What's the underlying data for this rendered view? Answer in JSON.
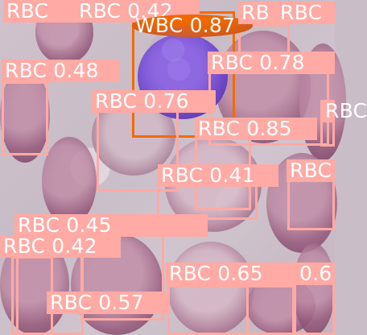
{
  "colors": {
    "rbc_box": "#ffaaa4",
    "wbc_box": "#f46a00",
    "label_text": "#ffffff"
  },
  "detections": [
    {
      "label": "RBC 0.42",
      "class": "rbc"
    },
    {
      "label": "RBC 0.48",
      "class": "rbc"
    },
    {
      "label": "RBC 0.76",
      "class": "rbc"
    },
    {
      "label": "WBC 0.87",
      "class": "wbc"
    },
    {
      "label": "RBC 0.78",
      "class": "rbc"
    },
    {
      "label": "RBC 0.85",
      "class": "rbc"
    },
    {
      "label": "RBC 0.41",
      "class": "rbc"
    },
    {
      "label": "RBC 0.45",
      "class": "rbc"
    },
    {
      "label": "RBC 0.42",
      "class": "rbc"
    },
    {
      "label": "RBC 0.65",
      "class": "rbc"
    },
    {
      "label": "RBC 0.57",
      "class": "rbc"
    },
    {
      "label": "RBC",
      "class": "rbc"
    },
    {
      "label": "RB",
      "class": "rbc"
    },
    {
      "label": "RBC",
      "class": "rbc"
    },
    {
      "label": "RBC",
      "class": "rbc"
    },
    {
      "label": "RBC",
      "class": "rbc"
    },
    {
      "label": "0.6",
      "class": "rbc"
    },
    {
      "label": "RBC",
      "class": "rbc"
    }
  ]
}
